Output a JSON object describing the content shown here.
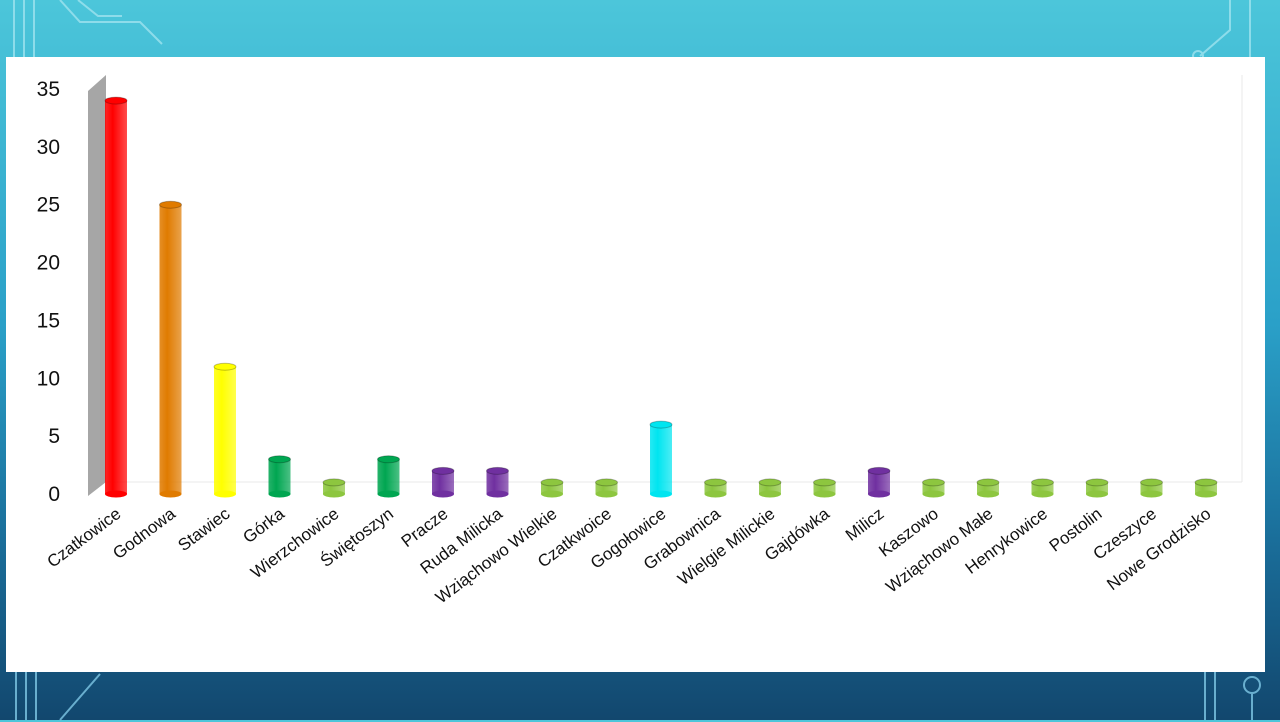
{
  "colors": {
    "red": "#ff0000",
    "orange": "#e07b00",
    "yellow": "#ffff00",
    "green": "#00a651",
    "lightgreen": "#8dc63f",
    "purple": "#7030a0",
    "cyan": "#00e5f0"
  },
  "chart_data": {
    "type": "bar",
    "title": "",
    "xlabel": "",
    "ylabel": "",
    "ylim": [
      0,
      35
    ],
    "yticks": [
      "0",
      "5",
      "10",
      "15",
      "20",
      "25",
      "30",
      "35"
    ],
    "grid": false,
    "legend": "none",
    "bar_style": "3d-cylinder",
    "categories": [
      "Czatkowice",
      "Godnowa",
      "Stawiec",
      "Górka",
      "Wierzchowice",
      "Świętoszyn",
      "Pracze",
      "Ruda Milicka",
      "Wziąchowo Wielkie",
      "Czatkwoice",
      "Gogołowice",
      "Grabownica",
      "Wielgie Milickie",
      "Gajdówka",
      "Milicz",
      "Kaszowo",
      "Wziąchowo Małe",
      "Henrykowice",
      "Postolin",
      "Czeszyce",
      "Nowe Grodzisko"
    ],
    "values": [
      34,
      25,
      11,
      3,
      1,
      3,
      2,
      2,
      1,
      1,
      6,
      1,
      1,
      1,
      2,
      1,
      1,
      1,
      1,
      1,
      1
    ],
    "bar_colors": [
      "red",
      "orange",
      "yellow",
      "green",
      "lightgreen",
      "green",
      "purple",
      "purple",
      "lightgreen",
      "lightgreen",
      "cyan",
      "lightgreen",
      "lightgreen",
      "lightgreen",
      "purple",
      "lightgreen",
      "lightgreen",
      "lightgreen",
      "lightgreen",
      "lightgreen",
      "lightgreen"
    ]
  }
}
